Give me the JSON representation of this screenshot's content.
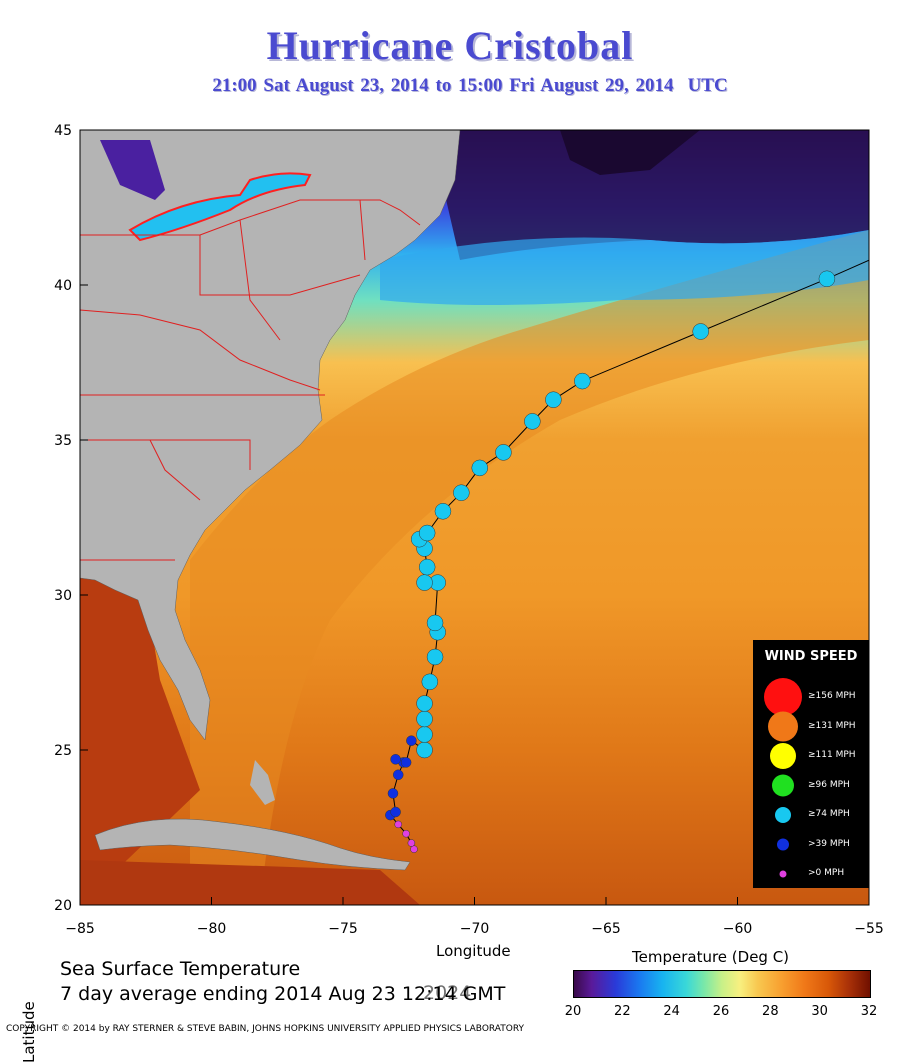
{
  "title": "Hurricane Cristobal",
  "subtitle": {
    "range": "21:00 Sat August 23, 2014 to 15:00 Fri August 29, 2014",
    "tz": "UTC"
  },
  "axes": {
    "xlabel": "Longitude",
    "ylabel": "Latitude",
    "xticks": [
      "−85",
      "−80",
      "−75",
      "−70",
      "−65",
      "−60",
      "−55"
    ],
    "yticks": [
      "45",
      "40",
      "35",
      "30",
      "25",
      "20"
    ]
  },
  "sst": {
    "line1": "Sea Surface Temperature",
    "line2": "7 day average ending 2014 Aug 23 12:14 GMT",
    "overprint": "2024"
  },
  "colorbar": {
    "title": "Temperature (Deg C)",
    "ticks": [
      "20",
      "22",
      "24",
      "26",
      "28",
      "30",
      "32"
    ]
  },
  "legend": {
    "title": "WIND SPEED",
    "items": [
      {
        "label": "≥156 MPH",
        "color": "#ff1010"
      },
      {
        "label": "≥131 MPH",
        "color": "#f07818"
      },
      {
        "label": "≥111 MPH",
        "color": "#ffff00"
      },
      {
        "label": "≥96 MPH",
        "color": "#20e020"
      },
      {
        "label": "≥74 MPH",
        "color": "#18c8f0"
      },
      {
        "label": ">39 MPH",
        "color": "#1030e0"
      },
      {
        "label": ">0 MPH",
        "color": "#e040e0"
      }
    ]
  },
  "copyright": "COPYRIGHT © 2014 by RAY STERNER & STEVE BABIN, JOHNS HOPKINS UNIVERSITY APPLIED PHYSICS LABORATORY",
  "colors": {
    "title": "#4a4ad0",
    "land": "#b4b4b4",
    "border": "#e02020",
    "track_line": "#000000"
  },
  "map_extent": {
    "lon": [
      -85,
      -55
    ],
    "lat": [
      20,
      45
    ]
  },
  "track": [
    {
      "lon": -72.3,
      "lat": 21.8,
      "cat": ">0 MPH"
    },
    {
      "lon": -72.4,
      "lat": 22.0,
      "cat": ">0 MPH"
    },
    {
      "lon": -72.6,
      "lat": 22.3,
      "cat": ">0 MPH"
    },
    {
      "lon": -72.9,
      "lat": 22.6,
      "cat": ">0 MPH"
    },
    {
      "lon": -73.2,
      "lat": 22.9,
      "cat": ">39 MPH"
    },
    {
      "lon": -73.0,
      "lat": 23.0,
      "cat": ">39 MPH"
    },
    {
      "lon": -73.1,
      "lat": 23.6,
      "cat": ">39 MPH"
    },
    {
      "lon": -72.9,
      "lat": 24.2,
      "cat": ">39 MPH"
    },
    {
      "lon": -72.7,
      "lat": 24.6,
      "cat": ">39 MPH"
    },
    {
      "lon": -73.0,
      "lat": 24.7,
      "cat": ">39 MPH"
    },
    {
      "lon": -72.6,
      "lat": 24.6,
      "cat": ">39 MPH"
    },
    {
      "lon": -72.4,
      "lat": 25.3,
      "cat": ">39 MPH"
    },
    {
      "lon": -71.9,
      "lat": 25.0,
      "cat": "≥74 MPH"
    },
    {
      "lon": -71.9,
      "lat": 25.5,
      "cat": "≥74 MPH"
    },
    {
      "lon": -71.9,
      "lat": 26.0,
      "cat": "≥74 MPH"
    },
    {
      "lon": -71.9,
      "lat": 26.5,
      "cat": "≥74 MPH"
    },
    {
      "lon": -71.7,
      "lat": 27.2,
      "cat": "≥74 MPH"
    },
    {
      "lon": -71.5,
      "lat": 28.0,
      "cat": "≥74 MPH"
    },
    {
      "lon": -71.4,
      "lat": 28.8,
      "cat": "≥74 MPH"
    },
    {
      "lon": -71.5,
      "lat": 29.1,
      "cat": "≥74 MPH"
    },
    {
      "lon": -71.4,
      "lat": 30.4,
      "cat": "≥74 MPH"
    },
    {
      "lon": -71.9,
      "lat": 30.4,
      "cat": "≥74 MPH"
    },
    {
      "lon": -71.8,
      "lat": 30.9,
      "cat": "≥74 MPH"
    },
    {
      "lon": -71.9,
      "lat": 31.5,
      "cat": "≥74 MPH"
    },
    {
      "lon": -72.1,
      "lat": 31.8,
      "cat": "≥74 MPH"
    },
    {
      "lon": -71.8,
      "lat": 32.0,
      "cat": "≥74 MPH"
    },
    {
      "lon": -71.2,
      "lat": 32.7,
      "cat": "≥74 MPH"
    },
    {
      "lon": -70.5,
      "lat": 33.3,
      "cat": "≥74 MPH"
    },
    {
      "lon": -69.8,
      "lat": 34.1,
      "cat": "≥74 MPH"
    },
    {
      "lon": -68.9,
      "lat": 34.6,
      "cat": "≥74 MPH"
    },
    {
      "lon": -67.8,
      "lat": 35.6,
      "cat": "≥74 MPH"
    },
    {
      "lon": -67.0,
      "lat": 36.3,
      "cat": "≥74 MPH"
    },
    {
      "lon": -65.9,
      "lat": 36.9,
      "cat": "≥74 MPH"
    },
    {
      "lon": -61.4,
      "lat": 38.5,
      "cat": "≥74 MPH"
    },
    {
      "lon": -56.6,
      "lat": 40.2,
      "cat": "≥74 MPH"
    },
    {
      "lon": -55.0,
      "lat": 40.8,
      "cat": "end"
    }
  ]
}
